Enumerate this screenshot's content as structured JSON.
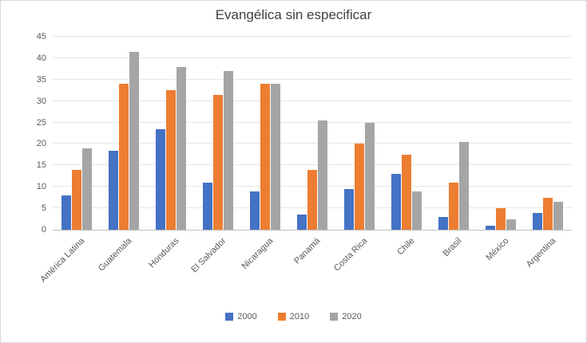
{
  "chart_data": {
    "type": "bar",
    "title": "Evangélica sin especificar",
    "categories": [
      "América Latina",
      "Guatemala",
      "Honduras",
      "El Salvador",
      "Nicaragua",
      "Panamá",
      "Costa Rica",
      "Chile",
      "Brasil",
      "México",
      "Argentina"
    ],
    "series": [
      {
        "name": "2000",
        "color": "#4472c4",
        "values": [
          8,
          18.5,
          23.5,
          11,
          9,
          3.5,
          9.5,
          13,
          3,
          1,
          4
        ]
      },
      {
        "name": "2010",
        "color": "#ed7d31",
        "values": [
          14,
          34,
          32.5,
          31.5,
          34,
          14,
          20,
          17.5,
          11,
          5,
          7.5
        ]
      },
      {
        "name": "2020",
        "color": "#a5a5a5",
        "values": [
          19,
          41.5,
          38,
          37,
          34,
          25.5,
          25,
          9,
          20.5,
          2.5,
          6.5
        ]
      }
    ],
    "ylim": [
      0,
      45
    ],
    "ytick_step": 5,
    "grid": true,
    "legend_position": "bottom",
    "xlabel": "",
    "ylabel": ""
  }
}
